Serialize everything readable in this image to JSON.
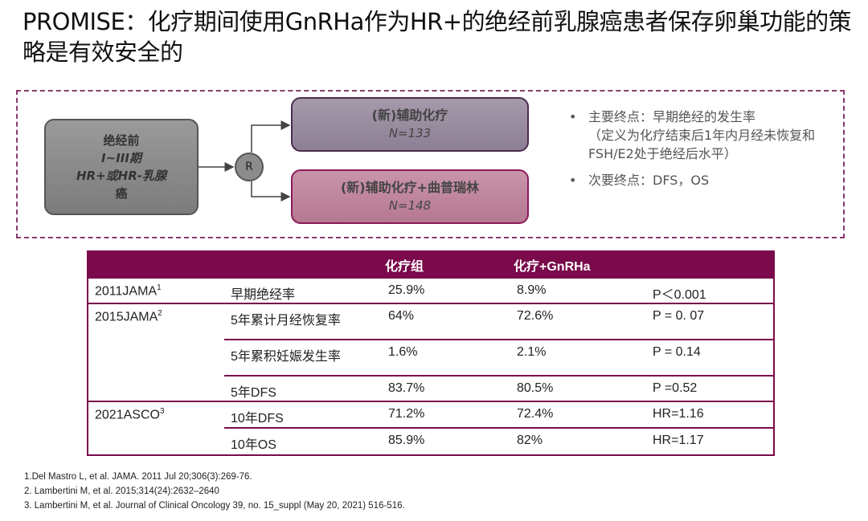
{
  "title": "PROMISE：化疗期间使用GnRHa作为HR+的绝经前乳腺癌患者保存卵巢功能的策略是有效安全的",
  "design": {
    "population": [
      "绝经前",
      "I~III期",
      "HR+或HR-乳腺",
      "癌"
    ],
    "randomize": "R",
    "arm1": {
      "label": "(新)辅助化疗",
      "n": "N=133"
    },
    "arm2": {
      "label": "(新)辅助化疗+曲普瑞林",
      "n": "N=148"
    },
    "colors": {
      "arm1": "#8d7f95",
      "arm2": "#b57890",
      "border": "#8a3a6e"
    }
  },
  "endpoints": {
    "primary": "主要终点：早期绝经的发生率",
    "primary_def": "（定义为化疗结束后1年内月经未恢复和FSH/E2处于绝经后水平）",
    "secondary": "次要终点：DFS，OS"
  },
  "table": {
    "header": [
      "",
      "",
      "化疗组",
      "化疗+GnRHa",
      ""
    ],
    "header_color": "#7a0a4c",
    "groups": [
      {
        "source": "2011JAMA",
        "sup": "1",
        "rows": [
          [
            "早期绝经率",
            "25.9%",
            "8.9%",
            "P＜0.001"
          ]
        ]
      },
      {
        "source": "2015JAMA",
        "sup": "2",
        "rows": [
          [
            "5年累计月经恢复率",
            "64%",
            "72.6%",
            "P = 0. 07"
          ],
          [
            "5年累积妊娠发生率",
            "1.6%",
            "2.1%",
            "P = 0.14"
          ],
          [
            "5年DFS",
            "83.7%",
            "80.5%",
            "P =0.52"
          ]
        ]
      },
      {
        "source": "2021ASCO",
        "sup": "3",
        "rows": [
          [
            "10年DFS",
            "71.2%",
            "72.4%",
            "HR=1.16"
          ],
          [
            "10年OS",
            "85.9%",
            "82%",
            "HR=1.17"
          ]
        ]
      }
    ]
  },
  "references": [
    "1.Del Mastro L, et al. JAMA. 2011 Jul 20;306(3):269-76.",
    "2. Lambertini M, et al. 2015;314(24):2632–2640",
    "3. Lambertini M, et al. Journal of Clinical Oncology 39, no. 15_suppl (May 20, 2021) 516-516."
  ]
}
